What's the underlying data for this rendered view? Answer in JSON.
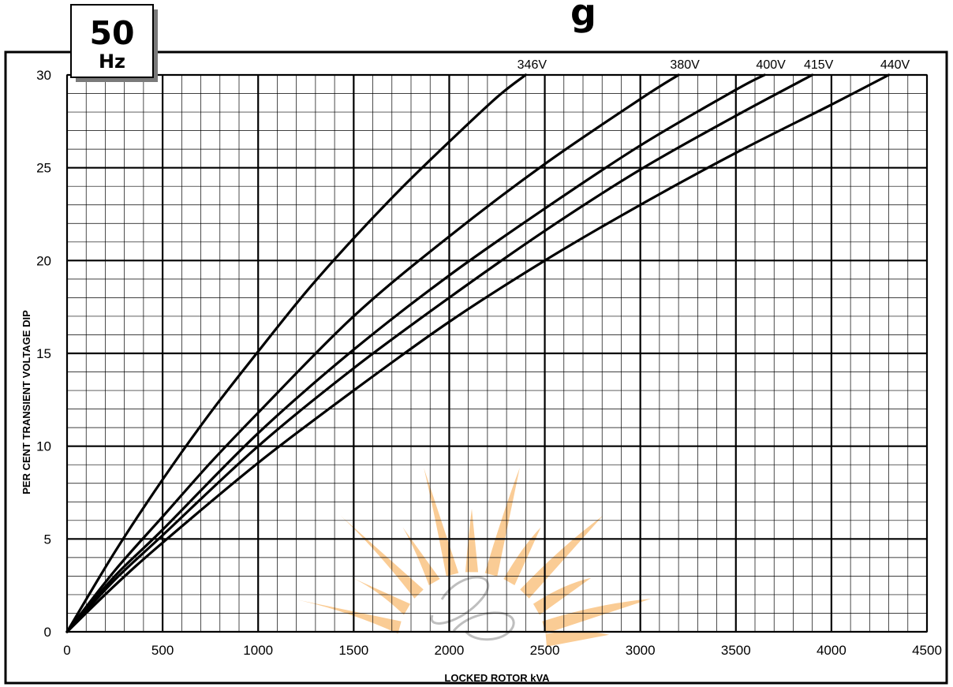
{
  "badge": {
    "value": "50",
    "unit": "Hz"
  },
  "heading_fragment": "g",
  "chart_data": {
    "type": "line",
    "xlabel": "LOCKED ROTOR kVA",
    "ylabel": "PER CENT TRANSIENT VOLTAGE DIP",
    "xlim": [
      0,
      4500
    ],
    "ylim": [
      0,
      30
    ],
    "x_ticks": [
      0,
      500,
      1000,
      1500,
      2000,
      2500,
      3000,
      3500,
      4000,
      4500
    ],
    "y_ticks": [
      0,
      5,
      10,
      15,
      20,
      25,
      30
    ],
    "grid": {
      "major": true,
      "minor": true
    },
    "series_labels_position": "top, at curve ends",
    "series": [
      {
        "name": "346V",
        "x": [
          0,
          250,
          500,
          750,
          1000,
          1250,
          1500,
          1750,
          2000,
          2250,
          2400
        ],
        "y": [
          0,
          4.3,
          8.2,
          11.8,
          15.1,
          18.3,
          21.2,
          23.9,
          26.4,
          28.8,
          30
        ]
      },
      {
        "name": "380V",
        "x": [
          0,
          250,
          500,
          750,
          1000,
          1500,
          2000,
          2500,
          3000,
          3200
        ],
        "y": [
          0,
          3.3,
          6.2,
          9.1,
          11.8,
          17.0,
          21.3,
          25.2,
          28.7,
          30
        ]
      },
      {
        "name": "400V",
        "x": [
          0,
          250,
          500,
          1000,
          1500,
          2000,
          2500,
          3000,
          3500,
          3650
        ],
        "y": [
          0,
          3.0,
          5.5,
          10.7,
          15.2,
          19.2,
          22.8,
          26.2,
          29.2,
          30
        ]
      },
      {
        "name": "415V",
        "x": [
          0,
          250,
          500,
          1000,
          1500,
          2000,
          2500,
          3000,
          3500,
          3900
        ],
        "y": [
          0,
          2.8,
          5.2,
          10.0,
          14.2,
          18.0,
          21.6,
          24.9,
          27.8,
          30
        ]
      },
      {
        "name": "440V",
        "x": [
          0,
          250,
          500,
          1000,
          1500,
          2000,
          2500,
          3000,
          3500,
          4000,
          4300
        ],
        "y": [
          0,
          2.5,
          4.8,
          9.1,
          13.0,
          16.7,
          20.0,
          23.0,
          25.8,
          28.4,
          30
        ]
      }
    ]
  }
}
